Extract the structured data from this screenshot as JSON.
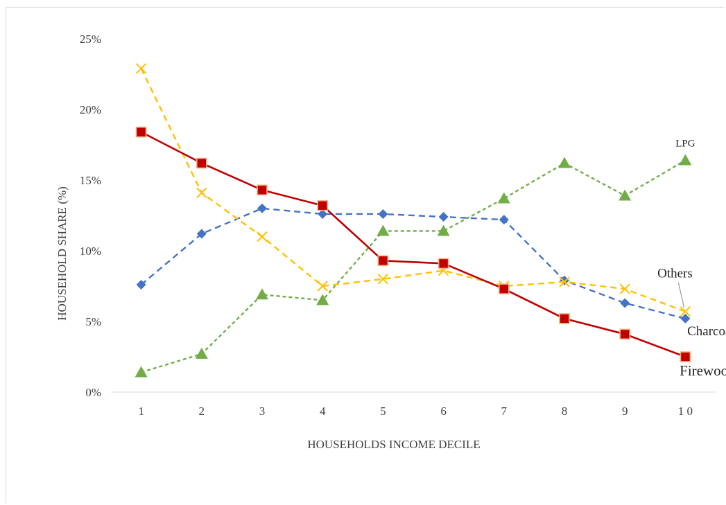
{
  "chart_data": {
    "type": "line",
    "xlabel": "HOUSEHOLDS INCOME DECILE",
    "ylabel": "HOUSEHOLD SHARE (%)",
    "categories": [
      "1",
      "2",
      "3",
      "4",
      "5",
      "6",
      "7",
      "8",
      "9",
      "1 0"
    ],
    "ylim": [
      0,
      25
    ],
    "yticks": [
      "0%",
      "5%",
      "10%",
      "15%",
      "20%",
      "25%"
    ],
    "ytick_values": [
      0,
      5,
      10,
      15,
      20,
      25
    ],
    "grid": false,
    "series": [
      {
        "name": "Firewood",
        "values": [
          18.4,
          16.2,
          14.3,
          13.2,
          9.3,
          9.1,
          7.3,
          5.2,
          4.1,
          2.5
        ],
        "color": "#c00000",
        "marker": "square",
        "dash": "solid"
      },
      {
        "name": "Charcoal",
        "values": [
          7.6,
          11.2,
          13.0,
          12.6,
          12.6,
          12.4,
          12.2,
          7.9,
          6.3,
          5.2
        ],
        "color": "#4472c4",
        "marker": "diamond",
        "dash": "dashed"
      },
      {
        "name": "LPG",
        "values": [
          1.4,
          2.7,
          6.9,
          6.5,
          11.4,
          11.4,
          13.7,
          16.2,
          13.9,
          16.4
        ],
        "color": "#70ad47",
        "marker": "triangle",
        "dash": "dotted"
      },
      {
        "name": "Others",
        "values": [
          22.9,
          14.1,
          11.0,
          7.5,
          8.0,
          8.6,
          7.5,
          7.8,
          7.3,
          5.7
        ],
        "color": "#ffc000",
        "marker": "x",
        "dash": "dashed"
      }
    ]
  }
}
